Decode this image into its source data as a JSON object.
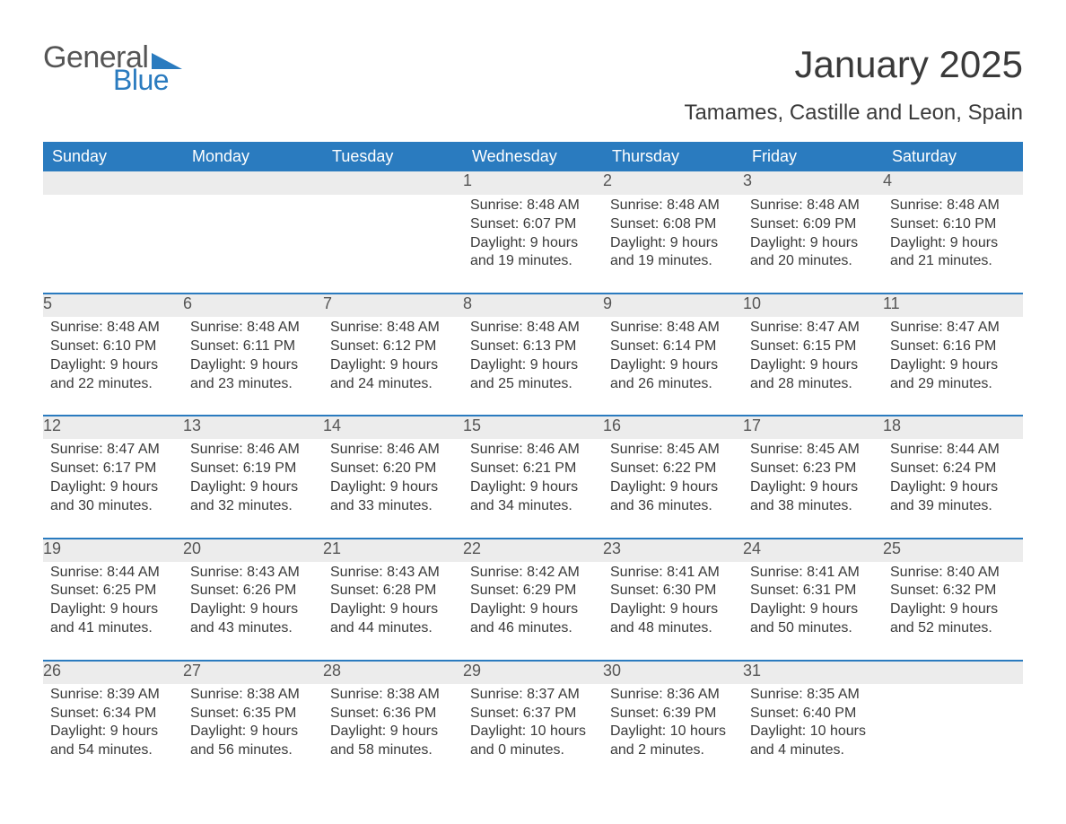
{
  "logo": {
    "text_general": "General",
    "text_blue": "Blue",
    "color_general": "#555555",
    "color_blue": "#2a7bbf"
  },
  "title": {
    "month": "January 2025",
    "location": "Tamames, Castille and Leon, Spain"
  },
  "colors": {
    "header_bg": "#2a7bbf",
    "header_text": "#ffffff",
    "daynum_bg": "#ececec",
    "daynum_text": "#555555",
    "body_text": "#3a3a3a",
    "row_divider": "#2a7bbf",
    "page_bg": "#ffffff"
  },
  "fonts": {
    "title_pt": 42,
    "location_pt": 24,
    "header_pt": 18,
    "daynum_pt": 18,
    "body_pt": 16
  },
  "day_headers": [
    "Sunday",
    "Monday",
    "Tuesday",
    "Wednesday",
    "Thursday",
    "Friday",
    "Saturday"
  ],
  "weeks": [
    [
      {
        "num": "",
        "sunrise": "",
        "sunset": "",
        "daylight1": "",
        "daylight2": ""
      },
      {
        "num": "",
        "sunrise": "",
        "sunset": "",
        "daylight1": "",
        "daylight2": ""
      },
      {
        "num": "",
        "sunrise": "",
        "sunset": "",
        "daylight1": "",
        "daylight2": ""
      },
      {
        "num": "1",
        "sunrise": "Sunrise: 8:48 AM",
        "sunset": "Sunset: 6:07 PM",
        "daylight1": "Daylight: 9 hours",
        "daylight2": "and 19 minutes."
      },
      {
        "num": "2",
        "sunrise": "Sunrise: 8:48 AM",
        "sunset": "Sunset: 6:08 PM",
        "daylight1": "Daylight: 9 hours",
        "daylight2": "and 19 minutes."
      },
      {
        "num": "3",
        "sunrise": "Sunrise: 8:48 AM",
        "sunset": "Sunset: 6:09 PM",
        "daylight1": "Daylight: 9 hours",
        "daylight2": "and 20 minutes."
      },
      {
        "num": "4",
        "sunrise": "Sunrise: 8:48 AM",
        "sunset": "Sunset: 6:10 PM",
        "daylight1": "Daylight: 9 hours",
        "daylight2": "and 21 minutes."
      }
    ],
    [
      {
        "num": "5",
        "sunrise": "Sunrise: 8:48 AM",
        "sunset": "Sunset: 6:10 PM",
        "daylight1": "Daylight: 9 hours",
        "daylight2": "and 22 minutes."
      },
      {
        "num": "6",
        "sunrise": "Sunrise: 8:48 AM",
        "sunset": "Sunset: 6:11 PM",
        "daylight1": "Daylight: 9 hours",
        "daylight2": "and 23 minutes."
      },
      {
        "num": "7",
        "sunrise": "Sunrise: 8:48 AM",
        "sunset": "Sunset: 6:12 PM",
        "daylight1": "Daylight: 9 hours",
        "daylight2": "and 24 minutes."
      },
      {
        "num": "8",
        "sunrise": "Sunrise: 8:48 AM",
        "sunset": "Sunset: 6:13 PM",
        "daylight1": "Daylight: 9 hours",
        "daylight2": "and 25 minutes."
      },
      {
        "num": "9",
        "sunrise": "Sunrise: 8:48 AM",
        "sunset": "Sunset: 6:14 PM",
        "daylight1": "Daylight: 9 hours",
        "daylight2": "and 26 minutes."
      },
      {
        "num": "10",
        "sunrise": "Sunrise: 8:47 AM",
        "sunset": "Sunset: 6:15 PM",
        "daylight1": "Daylight: 9 hours",
        "daylight2": "and 28 minutes."
      },
      {
        "num": "11",
        "sunrise": "Sunrise: 8:47 AM",
        "sunset": "Sunset: 6:16 PM",
        "daylight1": "Daylight: 9 hours",
        "daylight2": "and 29 minutes."
      }
    ],
    [
      {
        "num": "12",
        "sunrise": "Sunrise: 8:47 AM",
        "sunset": "Sunset: 6:17 PM",
        "daylight1": "Daylight: 9 hours",
        "daylight2": "and 30 minutes."
      },
      {
        "num": "13",
        "sunrise": "Sunrise: 8:46 AM",
        "sunset": "Sunset: 6:19 PM",
        "daylight1": "Daylight: 9 hours",
        "daylight2": "and 32 minutes."
      },
      {
        "num": "14",
        "sunrise": "Sunrise: 8:46 AM",
        "sunset": "Sunset: 6:20 PM",
        "daylight1": "Daylight: 9 hours",
        "daylight2": "and 33 minutes."
      },
      {
        "num": "15",
        "sunrise": "Sunrise: 8:46 AM",
        "sunset": "Sunset: 6:21 PM",
        "daylight1": "Daylight: 9 hours",
        "daylight2": "and 34 minutes."
      },
      {
        "num": "16",
        "sunrise": "Sunrise: 8:45 AM",
        "sunset": "Sunset: 6:22 PM",
        "daylight1": "Daylight: 9 hours",
        "daylight2": "and 36 minutes."
      },
      {
        "num": "17",
        "sunrise": "Sunrise: 8:45 AM",
        "sunset": "Sunset: 6:23 PM",
        "daylight1": "Daylight: 9 hours",
        "daylight2": "and 38 minutes."
      },
      {
        "num": "18",
        "sunrise": "Sunrise: 8:44 AM",
        "sunset": "Sunset: 6:24 PM",
        "daylight1": "Daylight: 9 hours",
        "daylight2": "and 39 minutes."
      }
    ],
    [
      {
        "num": "19",
        "sunrise": "Sunrise: 8:44 AM",
        "sunset": "Sunset: 6:25 PM",
        "daylight1": "Daylight: 9 hours",
        "daylight2": "and 41 minutes."
      },
      {
        "num": "20",
        "sunrise": "Sunrise: 8:43 AM",
        "sunset": "Sunset: 6:26 PM",
        "daylight1": "Daylight: 9 hours",
        "daylight2": "and 43 minutes."
      },
      {
        "num": "21",
        "sunrise": "Sunrise: 8:43 AM",
        "sunset": "Sunset: 6:28 PM",
        "daylight1": "Daylight: 9 hours",
        "daylight2": "and 44 minutes."
      },
      {
        "num": "22",
        "sunrise": "Sunrise: 8:42 AM",
        "sunset": "Sunset: 6:29 PM",
        "daylight1": "Daylight: 9 hours",
        "daylight2": "and 46 minutes."
      },
      {
        "num": "23",
        "sunrise": "Sunrise: 8:41 AM",
        "sunset": "Sunset: 6:30 PM",
        "daylight1": "Daylight: 9 hours",
        "daylight2": "and 48 minutes."
      },
      {
        "num": "24",
        "sunrise": "Sunrise: 8:41 AM",
        "sunset": "Sunset: 6:31 PM",
        "daylight1": "Daylight: 9 hours",
        "daylight2": "and 50 minutes."
      },
      {
        "num": "25",
        "sunrise": "Sunrise: 8:40 AM",
        "sunset": "Sunset: 6:32 PM",
        "daylight1": "Daylight: 9 hours",
        "daylight2": "and 52 minutes."
      }
    ],
    [
      {
        "num": "26",
        "sunrise": "Sunrise: 8:39 AM",
        "sunset": "Sunset: 6:34 PM",
        "daylight1": "Daylight: 9 hours",
        "daylight2": "and 54 minutes."
      },
      {
        "num": "27",
        "sunrise": "Sunrise: 8:38 AM",
        "sunset": "Sunset: 6:35 PM",
        "daylight1": "Daylight: 9 hours",
        "daylight2": "and 56 minutes."
      },
      {
        "num": "28",
        "sunrise": "Sunrise: 8:38 AM",
        "sunset": "Sunset: 6:36 PM",
        "daylight1": "Daylight: 9 hours",
        "daylight2": "and 58 minutes."
      },
      {
        "num": "29",
        "sunrise": "Sunrise: 8:37 AM",
        "sunset": "Sunset: 6:37 PM",
        "daylight1": "Daylight: 10 hours",
        "daylight2": "and 0 minutes."
      },
      {
        "num": "30",
        "sunrise": "Sunrise: 8:36 AM",
        "sunset": "Sunset: 6:39 PM",
        "daylight1": "Daylight: 10 hours",
        "daylight2": "and 2 minutes."
      },
      {
        "num": "31",
        "sunrise": "Sunrise: 8:35 AM",
        "sunset": "Sunset: 6:40 PM",
        "daylight1": "Daylight: 10 hours",
        "daylight2": "and 4 minutes."
      },
      {
        "num": "",
        "sunrise": "",
        "sunset": "",
        "daylight1": "",
        "daylight2": ""
      }
    ]
  ]
}
